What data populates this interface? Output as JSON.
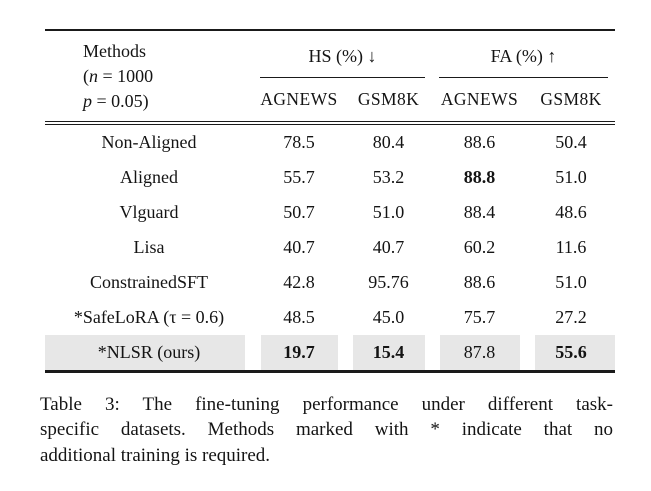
{
  "colors": {
    "background": "#ffffff",
    "text": "#141414",
    "rule": "#1a1a1a",
    "highlight": "#e7e7e7"
  },
  "table": {
    "methods_header": {
      "title": "Methods",
      "line2_open": "(",
      "line2_var": "n",
      "line2_rest": " = 1000",
      "line3_var": "p",
      "line3_rest": " = 0.05)"
    },
    "group_headers": [
      {
        "label": "HS (%) ↓"
      },
      {
        "label": "FA (%) ↑"
      }
    ],
    "subheaders": [
      "AGNEWS",
      "GSM8K",
      "AGNEWS",
      "GSM8K"
    ],
    "rows": [
      {
        "method": "Non-Aligned",
        "values": [
          "78.5",
          "80.4",
          "88.6",
          "50.4"
        ]
      },
      {
        "method": "Aligned",
        "values": [
          "55.7",
          "53.2",
          "88.8",
          "51.0"
        ]
      },
      {
        "method": "Vlguard",
        "values": [
          "50.7",
          "51.0",
          "88.4",
          "48.6"
        ]
      },
      {
        "method": "Lisa",
        "values": [
          "40.7",
          "40.7",
          "60.2",
          "11.6"
        ]
      },
      {
        "method": "ConstrainedSFT",
        "values": [
          "42.8",
          "95.76",
          "88.6",
          "51.0"
        ]
      },
      {
        "method": "*SafeLoRA (τ = 0.6)",
        "values": [
          "48.5",
          "45.0",
          "75.7",
          "27.2"
        ]
      },
      {
        "method": "*NLSR (ours)",
        "values": [
          "19.7",
          "15.4",
          "87.8",
          "55.6"
        ]
      }
    ]
  },
  "caption": {
    "lines": [
      "Table 3: The fine-tuning performance under different task-",
      "specific datasets. Methods marked with * indicate that no",
      "additional training is required."
    ]
  }
}
